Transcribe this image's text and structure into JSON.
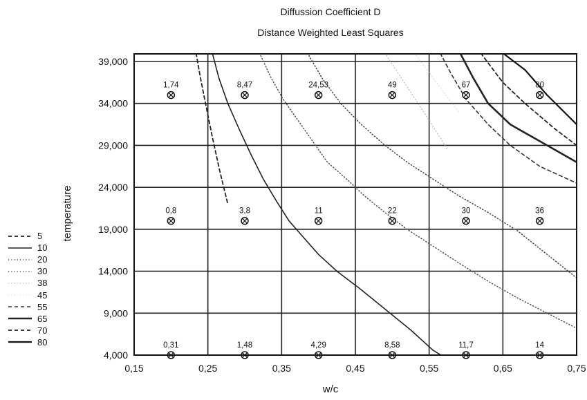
{
  "chart_data": {
    "type": "line",
    "title": "Diffussion Coefficient D",
    "subtitle": "Distance Weighted Least Squares",
    "xlabel": "w/c",
    "ylabel": "temperature",
    "xlim": [
      0.15,
      0.75
    ],
    "ylim": [
      4000,
      40000
    ],
    "x_ticks": [
      0.15,
      0.25,
      0.35,
      0.45,
      0.55,
      0.65,
      0.75
    ],
    "x_tick_labels": [
      "0,15",
      "0,25",
      "0,35",
      "0,45",
      "0,55",
      "0,65",
      "0,75"
    ],
    "y_ticks": [
      4000,
      9000,
      14000,
      19000,
      24000,
      29000,
      34000,
      39000
    ],
    "y_tick_labels": [
      "4,000",
      "9,000",
      "14,000",
      "19,000",
      "24,000",
      "29,000",
      "34,000",
      "39,000"
    ],
    "grid": true,
    "legend_position": "left",
    "points": [
      {
        "x": 0.2,
        "y": 35000,
        "label": "1,74"
      },
      {
        "x": 0.3,
        "y": 35000,
        "label": "8,47"
      },
      {
        "x": 0.4,
        "y": 35000,
        "label": "24,53"
      },
      {
        "x": 0.5,
        "y": 35000,
        "label": "49"
      },
      {
        "x": 0.6,
        "y": 35000,
        "label": "67"
      },
      {
        "x": 0.7,
        "y": 35000,
        "label": "80"
      },
      {
        "x": 0.2,
        "y": 20000,
        "label": "0,8"
      },
      {
        "x": 0.3,
        "y": 20000,
        "label": "3,8"
      },
      {
        "x": 0.4,
        "y": 20000,
        "label": "11"
      },
      {
        "x": 0.5,
        "y": 20000,
        "label": "22"
      },
      {
        "x": 0.6,
        "y": 20000,
        "label": "30"
      },
      {
        "x": 0.7,
        "y": 20000,
        "label": "36"
      },
      {
        "x": 0.2,
        "y": 4000,
        "label": "0,31"
      },
      {
        "x": 0.3,
        "y": 4000,
        "label": "1,48"
      },
      {
        "x": 0.4,
        "y": 4000,
        "label": "4,29"
      },
      {
        "x": 0.5,
        "y": 4000,
        "label": "8,58"
      },
      {
        "x": 0.6,
        "y": 4000,
        "label": "11,7"
      },
      {
        "x": 0.7,
        "y": 4000,
        "label": "14"
      }
    ],
    "series": [
      {
        "name": "5",
        "style": "dashed",
        "color": "#222222",
        "width": 1.8,
        "x": [
          0.234,
          0.24,
          0.248,
          0.256,
          0.266,
          0.277
        ],
        "y": [
          40000,
          37000,
          33500,
          30000,
          26000,
          22000
        ]
      },
      {
        "name": "10",
        "style": "solid",
        "color": "#222222",
        "width": 1.6,
        "x": [
          0.256,
          0.265,
          0.277,
          0.292,
          0.308,
          0.325,
          0.342,
          0.36,
          0.38,
          0.4,
          0.425,
          0.455,
          0.49,
          0.525,
          0.555,
          0.566
        ],
        "y": [
          40000,
          37000,
          34000,
          31000,
          28000,
          25000,
          22500,
          20000,
          18000,
          16000,
          14000,
          12000,
          9500,
          7000,
          4600,
          4000
        ]
      },
      {
        "name": "20",
        "style": "dotted",
        "color": "#555555",
        "width": 1.5,
        "x": [
          0.32,
          0.336,
          0.352,
          0.372,
          0.392,
          0.412,
          0.438,
          0.462,
          0.49,
          0.52,
          0.555,
          0.59,
          0.63,
          0.67,
          0.71,
          0.75
        ],
        "y": [
          40000,
          37000,
          34500,
          32000,
          29500,
          27000,
          25000,
          23000,
          21000,
          19000,
          17000,
          15000,
          12800,
          10800,
          9000,
          7200
        ]
      },
      {
        "name": "30",
        "style": "dotted",
        "color": "#444444",
        "width": 1.5,
        "x": [
          0.385,
          0.405,
          0.43,
          0.458,
          0.49,
          0.52,
          0.555,
          0.59,
          0.63,
          0.67,
          0.71,
          0.75
        ],
        "y": [
          40000,
          37000,
          34000,
          31500,
          29000,
          27000,
          25000,
          23000,
          21000,
          18800,
          16000,
          13200
        ]
      },
      {
        "name": "38",
        "style": "dotted",
        "color": "#bbbbbb",
        "width": 1.2,
        "x": [
          0.49,
          0.52,
          0.55,
          0.575
        ],
        "y": [
          40000,
          36000,
          32000,
          28500
        ]
      },
      {
        "name": "45",
        "style": "dotted",
        "color": "#dddddd",
        "width": 1.2,
        "x": [
          0.53,
          0.56,
          0.59
        ],
        "y": [
          40000,
          36500,
          33000
        ]
      },
      {
        "name": "55",
        "style": "dashed",
        "color": "#333333",
        "width": 1.6,
        "x": [
          0.565,
          0.58,
          0.6,
          0.63,
          0.66,
          0.7,
          0.75
        ],
        "y": [
          40000,
          37500,
          34500,
          31500,
          29000,
          26500,
          24500
        ]
      },
      {
        "name": "65",
        "style": "solid",
        "color": "#222222",
        "width": 2.6,
        "x": [
          0.592,
          0.61,
          0.63,
          0.66,
          0.7,
          0.75
        ],
        "y": [
          40000,
          37000,
          34000,
          31500,
          29500,
          27000
        ]
      },
      {
        "name": "70",
        "style": "dashed",
        "color": "#222222",
        "width": 1.8,
        "x": [
          0.62,
          0.65,
          0.68,
          0.72,
          0.75
        ],
        "y": [
          40000,
          36500,
          34000,
          31000,
          29000
        ]
      },
      {
        "name": "80",
        "style": "solid",
        "color": "#111111",
        "width": 2.2,
        "x": [
          0.65,
          0.68,
          0.71,
          0.75
        ],
        "y": [
          40000,
          38000,
          35000,
          31500
        ]
      }
    ]
  }
}
